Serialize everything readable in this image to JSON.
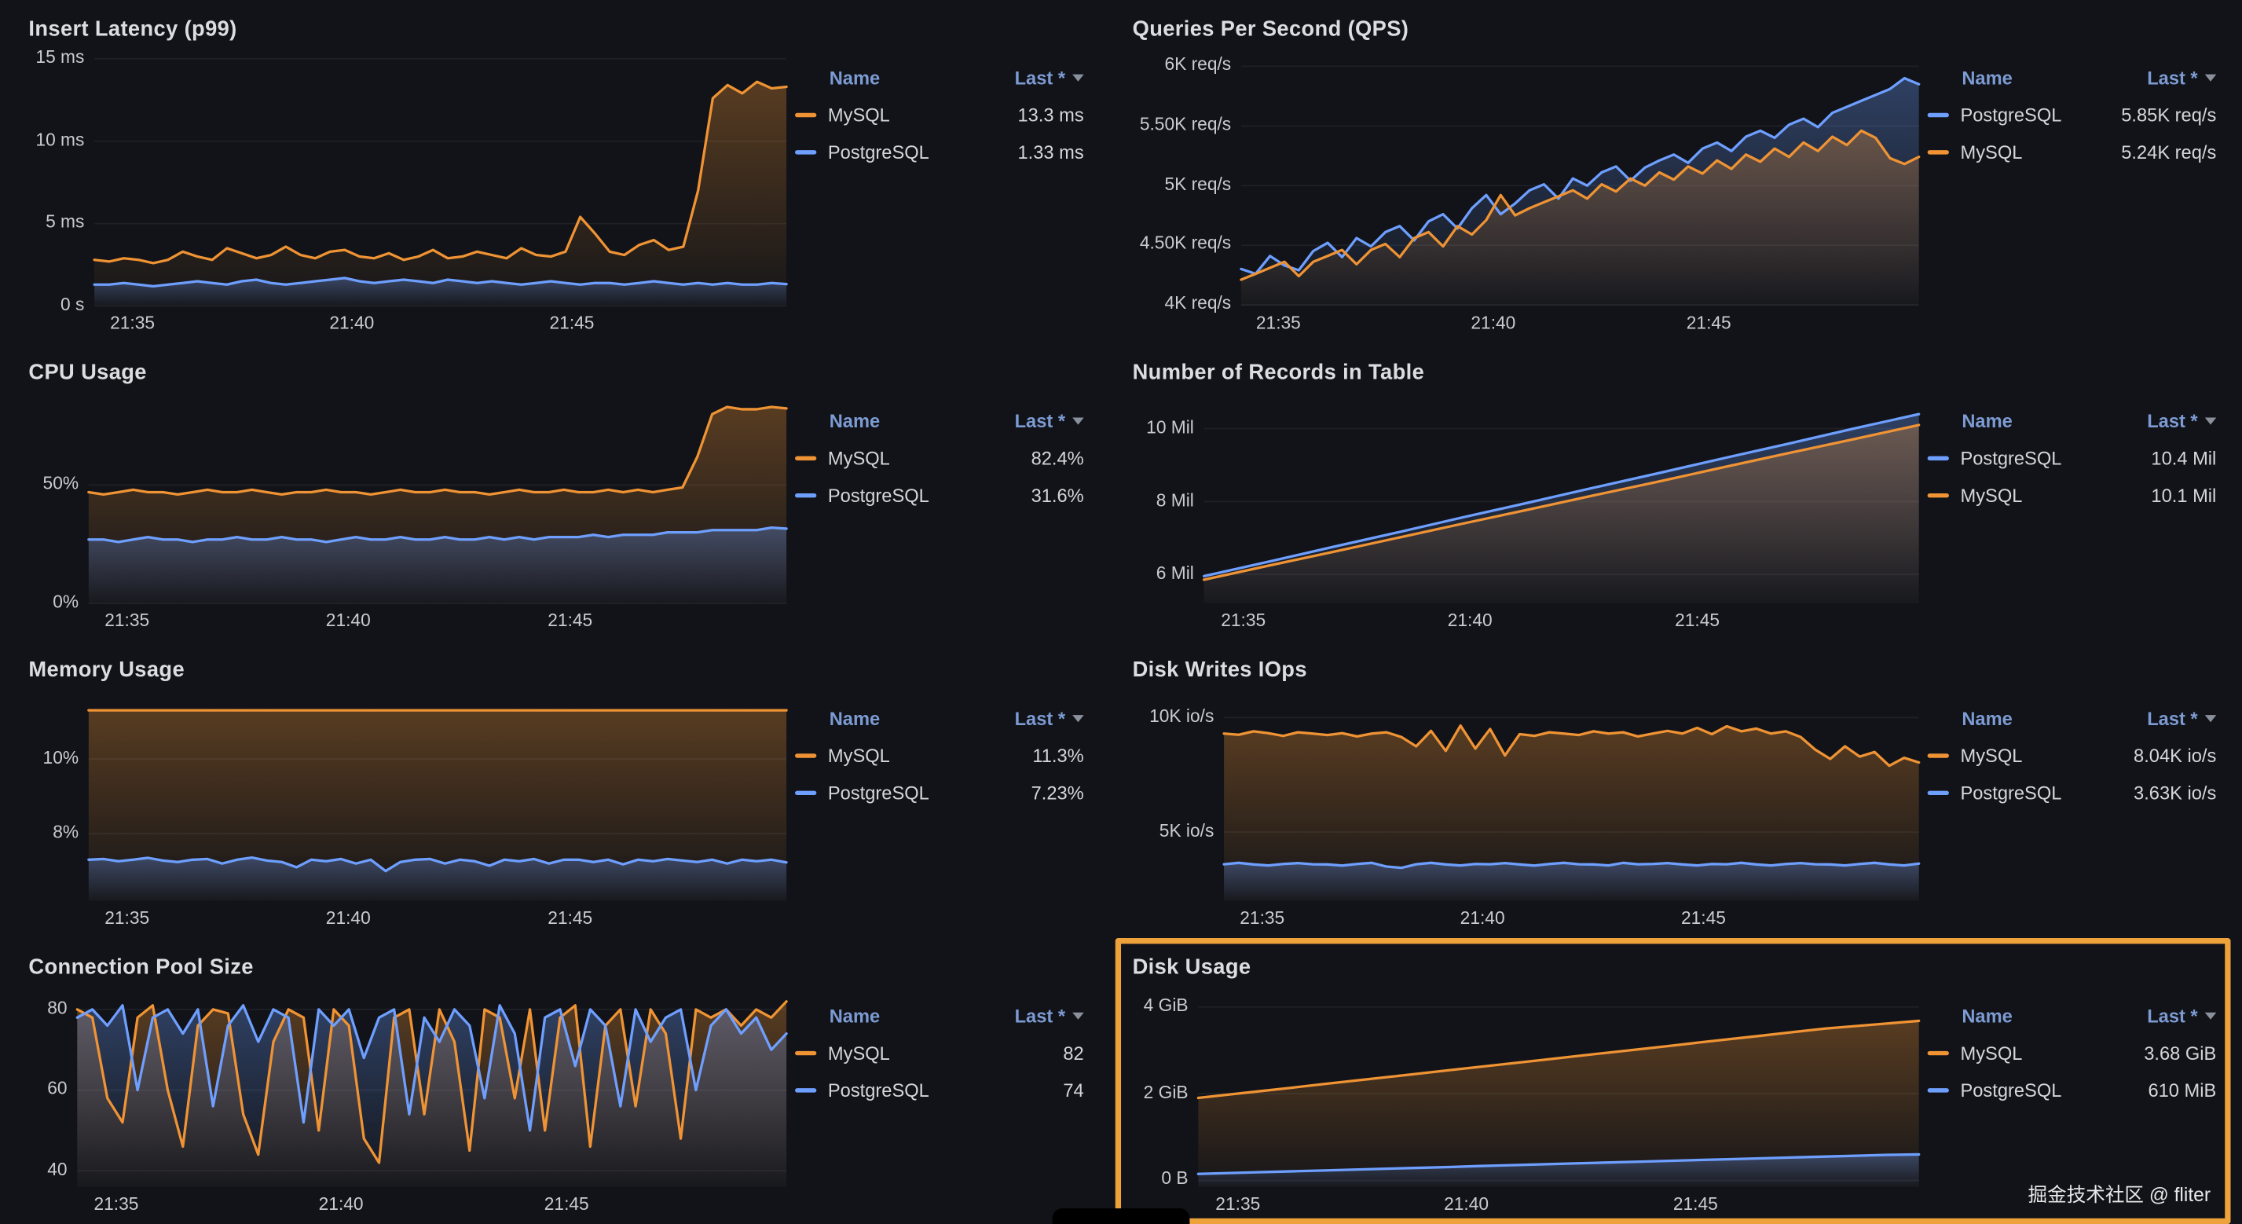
{
  "page": {
    "watermark": "掘金技术社区 @ fliter"
  },
  "colors": {
    "mysql": "#ef9334",
    "postgresql": "#6e9fff",
    "legend_header": "#7d9bd3",
    "highlight_border": "#eda23c",
    "grid_line": "rgba(204,210,224,0.07)"
  },
  "legend": {
    "name_header": "Name",
    "last_header": "Last *"
  },
  "chart_data": [
    {
      "type": "line",
      "title": "Insert Latency (p99)",
      "highlighted": false,
      "gutter": 48,
      "ylim": [
        0,
        15.7
      ],
      "yticks": [
        {
          "v": 0,
          "label": "0 s"
        },
        {
          "v": 5,
          "label": "5 ms"
        },
        {
          "v": 10,
          "label": "10 ms"
        },
        {
          "v": 15,
          "label": "15 ms"
        }
      ],
      "xticks": [
        {
          "pos": 0.055,
          "label": "21:35"
        },
        {
          "pos": 0.372,
          "label": "21:40"
        },
        {
          "pos": 0.69,
          "label": "21:45"
        }
      ],
      "series": [
        {
          "name": "MySQL",
          "color": "#ef9334",
          "last": "13.3 ms",
          "values": [
            2.8,
            2.7,
            2.9,
            2.8,
            2.6,
            2.8,
            3.3,
            3.0,
            2.8,
            3.5,
            3.2,
            2.9,
            3.1,
            3.6,
            3.1,
            2.9,
            3.3,
            3.4,
            3.0,
            2.9,
            3.2,
            2.8,
            3.0,
            3.4,
            2.9,
            3.0,
            3.3,
            3.1,
            2.9,
            3.5,
            3.1,
            3.0,
            3.3,
            5.4,
            4.4,
            3.3,
            3.1,
            3.7,
            4.0,
            3.4,
            3.6,
            7.0,
            12.6,
            13.4,
            12.9,
            13.6,
            13.2,
            13.3
          ]
        },
        {
          "name": "PostgreSQL",
          "color": "#6e9fff",
          "last": "1.33 ms",
          "values": [
            1.3,
            1.3,
            1.4,
            1.3,
            1.2,
            1.3,
            1.4,
            1.5,
            1.4,
            1.3,
            1.5,
            1.6,
            1.4,
            1.3,
            1.4,
            1.5,
            1.6,
            1.7,
            1.5,
            1.4,
            1.5,
            1.6,
            1.5,
            1.4,
            1.6,
            1.5,
            1.4,
            1.5,
            1.4,
            1.3,
            1.4,
            1.5,
            1.4,
            1.3,
            1.4,
            1.4,
            1.3,
            1.4,
            1.5,
            1.4,
            1.3,
            1.4,
            1.3,
            1.4,
            1.3,
            1.3,
            1.4,
            1.33
          ]
        }
      ]
    },
    {
      "type": "line",
      "title": "Queries Per Second (QPS)",
      "highlighted": false,
      "gutter": 78,
      "ylim": [
        3990,
        6160
      ],
      "yticks": [
        {
          "v": 4000,
          "label": "4K req/s"
        },
        {
          "v": 4500,
          "label": "4.50K req/s"
        },
        {
          "v": 5000,
          "label": "5K req/s"
        },
        {
          "v": 5500,
          "label": "5.50K req/s"
        },
        {
          "v": 6000,
          "label": "6K req/s"
        }
      ],
      "xticks": [
        {
          "pos": 0.055,
          "label": "21:35"
        },
        {
          "pos": 0.372,
          "label": "21:40"
        },
        {
          "pos": 0.69,
          "label": "21:45"
        }
      ],
      "series": [
        {
          "name": "PostgreSQL",
          "color": "#6e9fff",
          "last": "5.85K req/s",
          "values": [
            4300,
            4260,
            4410,
            4330,
            4290,
            4450,
            4520,
            4400,
            4560,
            4490,
            4610,
            4660,
            4540,
            4700,
            4760,
            4640,
            4810,
            4920,
            4760,
            4850,
            4960,
            5010,
            4890,
            5060,
            5000,
            5110,
            5160,
            5040,
            5150,
            5210,
            5260,
            5190,
            5310,
            5360,
            5290,
            5410,
            5460,
            5400,
            5510,
            5560,
            5490,
            5610,
            5660,
            5710,
            5760,
            5810,
            5900,
            5850
          ]
        },
        {
          "name": "MySQL",
          "color": "#ef9334",
          "last": "5.24K req/s",
          "values": [
            4210,
            4260,
            4310,
            4360,
            4240,
            4360,
            4410,
            4460,
            4340,
            4460,
            4510,
            4400,
            4560,
            4610,
            4490,
            4660,
            4590,
            4710,
            4920,
            4750,
            4810,
            4860,
            4910,
            4960,
            4890,
            5010,
            4950,
            5060,
            5000,
            5110,
            5050,
            5160,
            5100,
            5210,
            5140,
            5260,
            5200,
            5310,
            5240,
            5360,
            5290,
            5410,
            5340,
            5460,
            5400,
            5230,
            5180,
            5240
          ]
        }
      ]
    },
    {
      "type": "line",
      "title": "CPU Usage",
      "highlighted": false,
      "gutter": 44,
      "ylim": [
        0,
        90
      ],
      "yticks": [
        {
          "v": 0,
          "label": "0%"
        },
        {
          "v": 50,
          "label": "50%"
        }
      ],
      "xticks": [
        {
          "pos": 0.055,
          "label": "21:35"
        },
        {
          "pos": 0.372,
          "label": "21:40"
        },
        {
          "pos": 0.69,
          "label": "21:45"
        }
      ],
      "series": [
        {
          "name": "MySQL",
          "color": "#ef9334",
          "last": "82.4%",
          "values": [
            47,
            46,
            47,
            48,
            47,
            47,
            46,
            47,
            48,
            47,
            47,
            48,
            47,
            46,
            47,
            47,
            48,
            47,
            47,
            46,
            47,
            48,
            47,
            47,
            48,
            47,
            47,
            46,
            47,
            48,
            47,
            47,
            48,
            47,
            47,
            48,
            47,
            48,
            47,
            48,
            49,
            62,
            80,
            83,
            82,
            82,
            83,
            82.4
          ]
        },
        {
          "name": "PostgreSQL",
          "color": "#6e9fff",
          "last": "31.6%",
          "values": [
            27,
            27,
            26,
            27,
            28,
            27,
            27,
            26,
            27,
            27,
            28,
            27,
            27,
            28,
            27,
            27,
            26,
            27,
            28,
            27,
            27,
            28,
            27,
            27,
            28,
            27,
            27,
            28,
            27,
            28,
            27,
            28,
            28,
            28,
            29,
            28,
            29,
            29,
            29,
            30,
            30,
            30,
            31,
            31,
            31,
            31,
            32,
            31.6
          ]
        }
      ]
    },
    {
      "type": "line",
      "title": "Number of Records in Table",
      "highlighted": false,
      "gutter": 52,
      "ylim": [
        5.2,
        11.05
      ],
      "yticks": [
        {
          "v": 6,
          "label": "6 Mil"
        },
        {
          "v": 8,
          "label": "8 Mil"
        },
        {
          "v": 10,
          "label": "10 Mil"
        }
      ],
      "xticks": [
        {
          "pos": 0.055,
          "label": "21:35"
        },
        {
          "pos": 0.372,
          "label": "21:40"
        },
        {
          "pos": 0.69,
          "label": "21:45"
        }
      ],
      "series": [
        {
          "name": "PostgreSQL",
          "color": "#6e9fff",
          "last": "10.4 Mil",
          "values": [
            5.95,
            6.35,
            6.76,
            7.16,
            7.57,
            7.97,
            8.38,
            8.78,
            9.19,
            9.59,
            10.0,
            10.4
          ]
        },
        {
          "name": "MySQL",
          "color": "#ef9334",
          "last": "10.1 Mil",
          "values": [
            5.85,
            6.24,
            6.62,
            7.01,
            7.4,
            7.78,
            8.17,
            8.55,
            8.94,
            9.33,
            9.71,
            10.1
          ]
        }
      ]
    },
    {
      "type": "line",
      "title": "Memory Usage",
      "highlighted": false,
      "gutter": 44,
      "ylim": [
        6.2,
        11.9
      ],
      "yticks": [
        {
          "v": 8,
          "label": "8%"
        },
        {
          "v": 10,
          "label": "10%"
        }
      ],
      "xticks": [
        {
          "pos": 0.055,
          "label": "21:35"
        },
        {
          "pos": 0.372,
          "label": "21:40"
        },
        {
          "pos": 0.69,
          "label": "21:45"
        }
      ],
      "series": [
        {
          "name": "MySQL",
          "color": "#ef9334",
          "last": "11.3%",
          "values": [
            11.3,
            11.3,
            11.3,
            11.3,
            11.3,
            11.3,
            11.3,
            11.3,
            11.3,
            11.3,
            11.3,
            11.3
          ]
        },
        {
          "name": "PostgreSQL",
          "color": "#6e9fff",
          "last": "7.23%",
          "values": [
            7.3,
            7.32,
            7.26,
            7.3,
            7.35,
            7.28,
            7.24,
            7.3,
            7.32,
            7.2,
            7.3,
            7.36,
            7.28,
            7.24,
            7.1,
            7.3,
            7.26,
            7.32,
            7.2,
            7.3,
            7.0,
            7.24,
            7.3,
            7.32,
            7.2,
            7.3,
            7.26,
            7.14,
            7.3,
            7.26,
            7.32,
            7.2,
            7.3,
            7.3,
            7.24,
            7.3,
            7.18,
            7.3,
            7.26,
            7.32,
            7.28,
            7.24,
            7.3,
            7.2,
            7.3,
            7.26,
            7.3,
            7.23
          ]
        }
      ]
    },
    {
      "type": "line",
      "title": "Disk Writes IOps",
      "highlighted": false,
      "gutter": 66,
      "ylim": [
        2000,
        11300
      ],
      "yticks": [
        {
          "v": 5000,
          "label": "5K io/s"
        },
        {
          "v": 10000,
          "label": "10K io/s"
        }
      ],
      "xticks": [
        {
          "pos": 0.055,
          "label": "21:35"
        },
        {
          "pos": 0.372,
          "label": "21:40"
        },
        {
          "pos": 0.69,
          "label": "21:45"
        }
      ],
      "series": [
        {
          "name": "MySQL",
          "color": "#ef9334",
          "last": "8.04K io/s",
          "values": [
            9300,
            9250,
            9400,
            9320,
            9200,
            9360,
            9300,
            9240,
            9320,
            9180,
            9300,
            9360,
            9150,
            8750,
            9420,
            8550,
            9650,
            8650,
            9500,
            8350,
            9280,
            9200,
            9360,
            9300,
            9240,
            9400,
            9300,
            9360,
            9180,
            9300,
            9420,
            9300,
            9550,
            9280,
            9620,
            9400,
            9520,
            9300,
            9400,
            9150,
            8600,
            8200,
            8750,
            8300,
            8500,
            7900,
            8250,
            8040
          ]
        },
        {
          "name": "PostgreSQL",
          "color": "#6e9fff",
          "last": "3.63K io/s",
          "values": [
            3600,
            3660,
            3590,
            3550,
            3610,
            3650,
            3600,
            3590,
            3540,
            3610,
            3660,
            3500,
            3440,
            3600,
            3660,
            3590,
            3550,
            3610,
            3600,
            3650,
            3590,
            3540,
            3610,
            3660,
            3600,
            3590,
            3550,
            3660,
            3600,
            3610,
            3650,
            3590,
            3550,
            3610,
            3600,
            3660,
            3590,
            3550,
            3610,
            3650,
            3600,
            3590,
            3550,
            3610,
            3660,
            3590,
            3550,
            3630
          ]
        }
      ]
    },
    {
      "type": "line",
      "title": "Connection Pool Size",
      "highlighted": false,
      "gutter": 36,
      "ylim": [
        36,
        86
      ],
      "yticks": [
        {
          "v": 40,
          "label": "40"
        },
        {
          "v": 60,
          "label": "60"
        },
        {
          "v": 80,
          "label": "80"
        }
      ],
      "xticks": [
        {
          "pos": 0.055,
          "label": "21:35"
        },
        {
          "pos": 0.372,
          "label": "21:40"
        },
        {
          "pos": 0.69,
          "label": "21:45"
        }
      ],
      "series": [
        {
          "name": "MySQL",
          "color": "#ef9334",
          "last": "82",
          "values": [
            80,
            78,
            58,
            52,
            78,
            81,
            60,
            46,
            76,
            80,
            79,
            54,
            44,
            72,
            80,
            78,
            50,
            80,
            76,
            48,
            42,
            78,
            80,
            54,
            80,
            72,
            45,
            80,
            78,
            58,
            80,
            50,
            78,
            81,
            46,
            76,
            80,
            56,
            80,
            74,
            48,
            80,
            78,
            80,
            76,
            80,
            78,
            82
          ]
        },
        {
          "name": "PostgreSQL",
          "color": "#6e9fff",
          "last": "74",
          "values": [
            78,
            80,
            76,
            81,
            60,
            78,
            80,
            74,
            80,
            56,
            76,
            81,
            72,
            80,
            78,
            52,
            80,
            76,
            80,
            68,
            78,
            80,
            54,
            78,
            72,
            80,
            76,
            58,
            81,
            74,
            50,
            78,
            80,
            66,
            80,
            76,
            56,
            80,
            72,
            78,
            80,
            60,
            76,
            80,
            74,
            78,
            70,
            74
          ]
        }
      ]
    },
    {
      "type": "line",
      "title": "Disk Usage",
      "highlighted": true,
      "gutter": 48,
      "ylim": [
        -0.15,
        4.5
      ],
      "yticks": [
        {
          "v": 0,
          "label": "0 B"
        },
        {
          "v": 2,
          "label": "2 GiB"
        },
        {
          "v": 4,
          "label": "4 GiB"
        }
      ],
      "xticks": [
        {
          "pos": 0.055,
          "label": "21:35"
        },
        {
          "pos": 0.372,
          "label": "21:40"
        },
        {
          "pos": 0.69,
          "label": "21:45"
        }
      ],
      "series": [
        {
          "name": "MySQL",
          "color": "#ef9334",
          "last": "3.68 GiB",
          "values": [
            1.9,
            1.98,
            2.06,
            2.14,
            2.22,
            2.3,
            2.38,
            2.46,
            2.54,
            2.62,
            2.7,
            2.78,
            2.86,
            2.94,
            3.02,
            3.1,
            3.18,
            3.26,
            3.34,
            3.42,
            3.5,
            3.56,
            3.62,
            3.68
          ]
        },
        {
          "name": "PostgreSQL",
          "color": "#6e9fff",
          "last": "610 MiB",
          "values": [
            0.15,
            0.17,
            0.19,
            0.21,
            0.23,
            0.25,
            0.27,
            0.29,
            0.31,
            0.33,
            0.35,
            0.37,
            0.39,
            0.41,
            0.43,
            0.45,
            0.47,
            0.49,
            0.51,
            0.53,
            0.55,
            0.57,
            0.59,
            0.6
          ]
        }
      ]
    }
  ]
}
